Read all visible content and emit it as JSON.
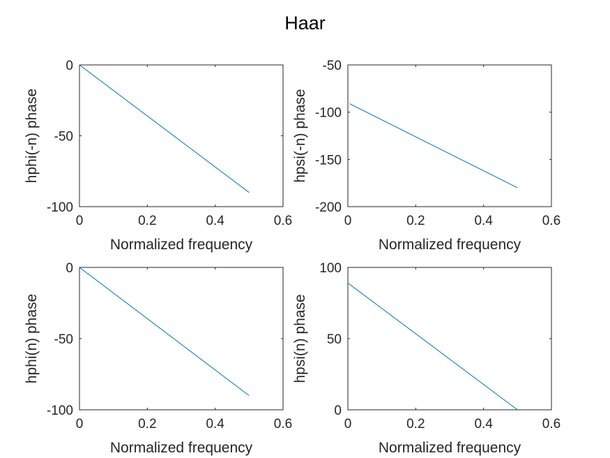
{
  "figure": {
    "title": "Haar"
  },
  "chart_data": [
    {
      "type": "line",
      "title": "",
      "xlabel": "Normalized frequency",
      "ylabel": "hphi(-n) phase",
      "xlim": [
        0,
        0.6
      ],
      "ylim": [
        -100,
        0
      ],
      "xticks": [
        "0",
        "0.2",
        "0.4",
        "0.6"
      ],
      "yticks": [
        "0",
        "-50",
        "-100"
      ],
      "series": [
        {
          "x": [
            0,
            0.5
          ],
          "y": [
            0,
            -90
          ],
          "color": "#0072BD"
        }
      ]
    },
    {
      "type": "line",
      "title": "",
      "xlabel": "Normalized frequency",
      "ylabel": "hpsi(-n) phase",
      "xlim": [
        0,
        0.6
      ],
      "ylim": [
        -200,
        -50
      ],
      "xticks": [
        "0",
        "0.2",
        "0.4",
        "0.6"
      ],
      "yticks": [
        "-50",
        "-100",
        "-150",
        "-200"
      ],
      "series": [
        {
          "x": [
            0.005,
            0.5
          ],
          "y": [
            -91,
            -180
          ],
          "color": "#0072BD"
        }
      ]
    },
    {
      "type": "line",
      "title": "",
      "xlabel": "Normalized frequency",
      "ylabel": "hphi(n) phase",
      "xlim": [
        0,
        0.6
      ],
      "ylim": [
        -100,
        0
      ],
      "xticks": [
        "0",
        "0.2",
        "0.4",
        "0.6"
      ],
      "yticks": [
        "0",
        "-50",
        "-100"
      ],
      "series": [
        {
          "x": [
            0,
            0.5
          ],
          "y": [
            0,
            -90
          ],
          "color": "#0072BD"
        }
      ]
    },
    {
      "type": "line",
      "title": "",
      "xlabel": "Normalized frequency",
      "ylabel": "hpsi(n) phase",
      "xlim": [
        0,
        0.6
      ],
      "ylim": [
        0,
        100
      ],
      "xticks": [
        "0",
        "0.2",
        "0.4",
        "0.6"
      ],
      "yticks": [
        "100",
        "50",
        "0"
      ],
      "series": [
        {
          "x": [
            0,
            0.5
          ],
          "y": [
            89,
            0
          ],
          "color": "#0072BD"
        }
      ]
    }
  ]
}
